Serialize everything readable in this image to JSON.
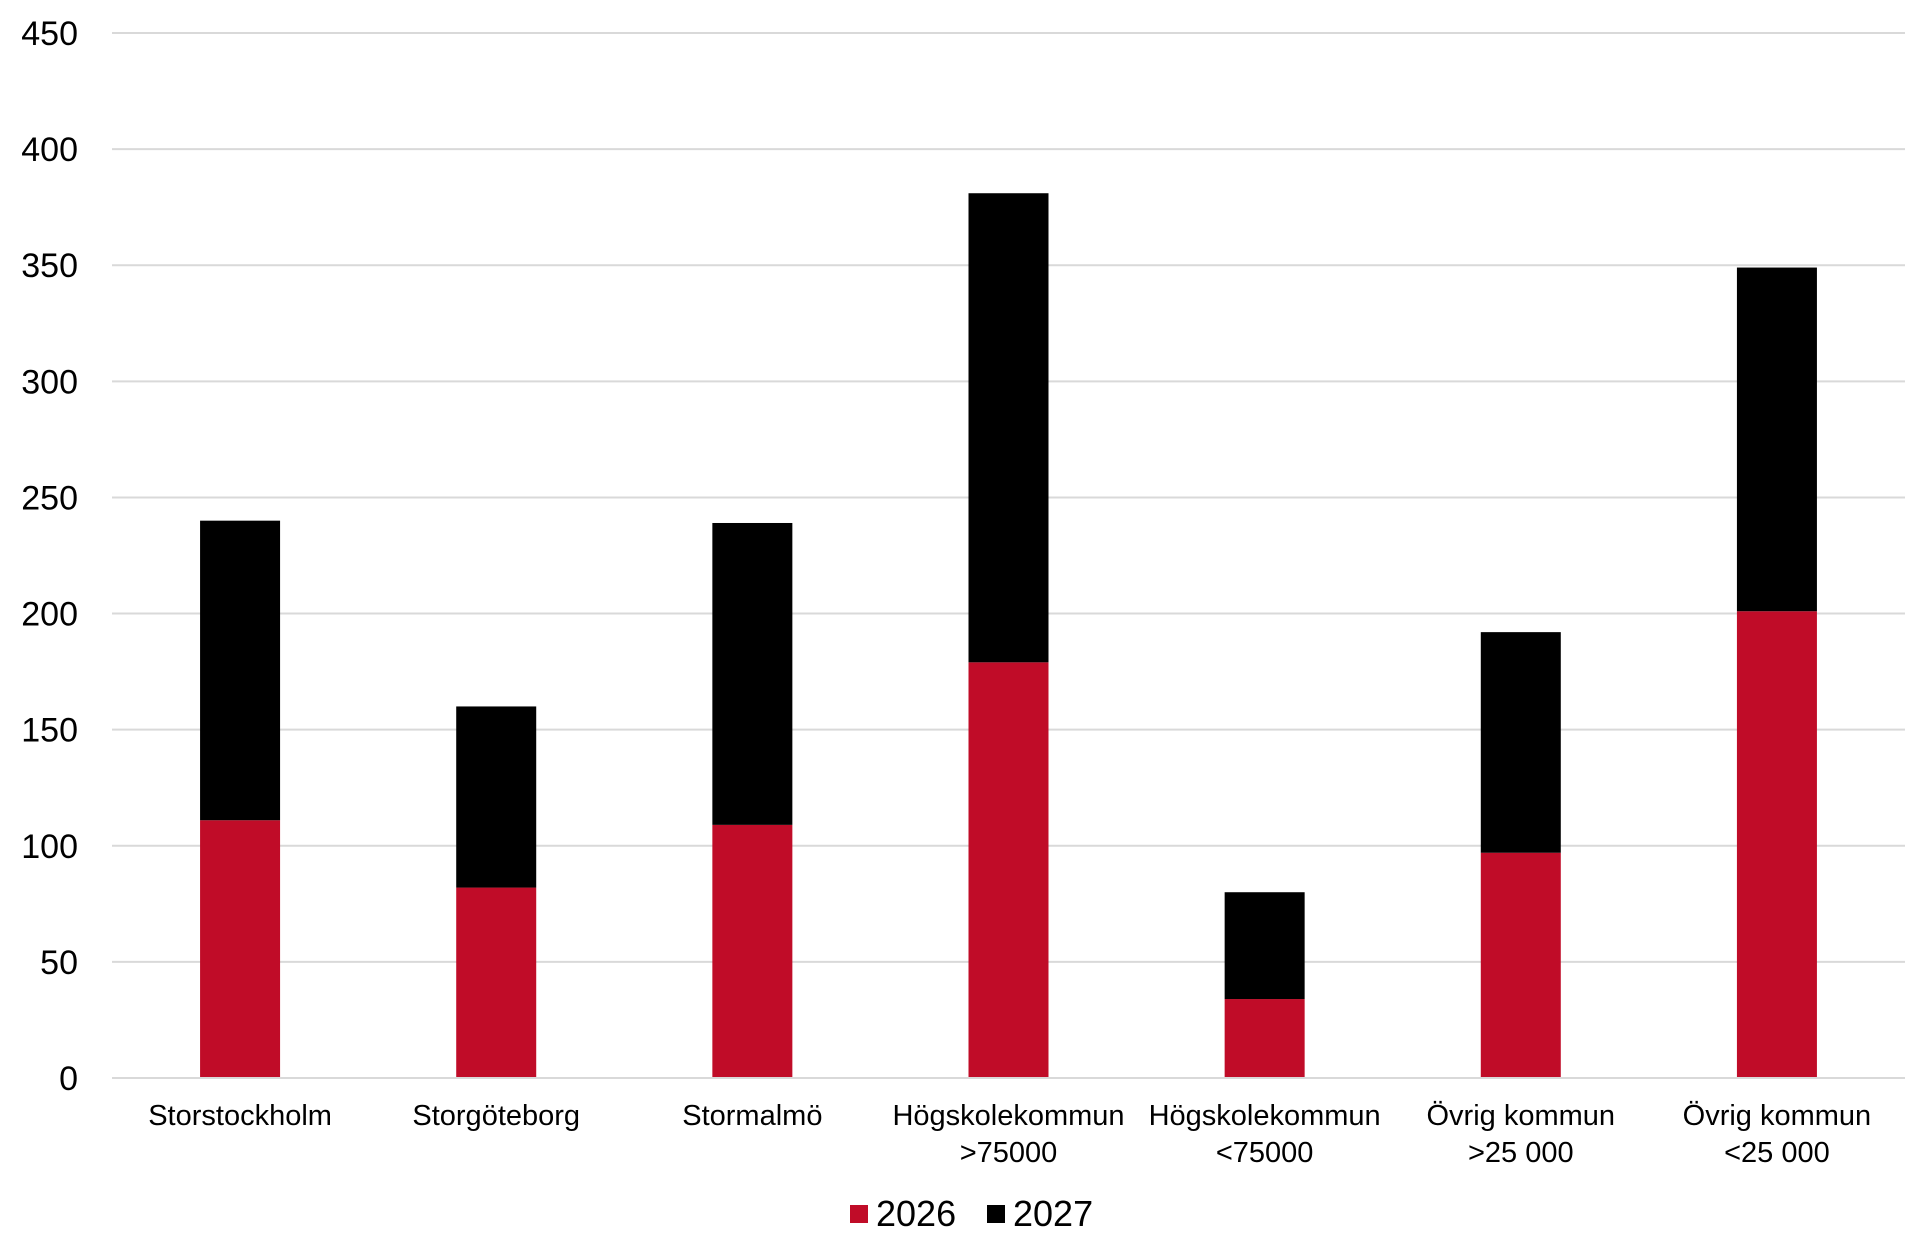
{
  "chart_data": {
    "type": "bar",
    "stacked": true,
    "title": "",
    "xlabel": "",
    "ylabel": "",
    "ylim": [
      0,
      450
    ],
    "yticks": [
      0,
      50,
      100,
      150,
      200,
      250,
      300,
      350,
      400,
      450
    ],
    "grid": true,
    "legend_position": "bottom",
    "categories": [
      [
        "Storstockholm"
      ],
      [
        "Storgöteborg"
      ],
      [
        "Stormalmö"
      ],
      [
        "Högskolekommun",
        ">75000"
      ],
      [
        "Högskolekommun",
        "<75000"
      ],
      [
        "Övrig kommun",
        ">25 000"
      ],
      [
        "Övrig kommun",
        "<25 000"
      ]
    ],
    "series": [
      {
        "name": "2026",
        "color": "#c00c28",
        "values": [
          111,
          82,
          109,
          179,
          34,
          97,
          201
        ]
      },
      {
        "name": "2027",
        "color": "#000000",
        "values": [
          129,
          78,
          130,
          202,
          46,
          95,
          148
        ]
      }
    ]
  }
}
